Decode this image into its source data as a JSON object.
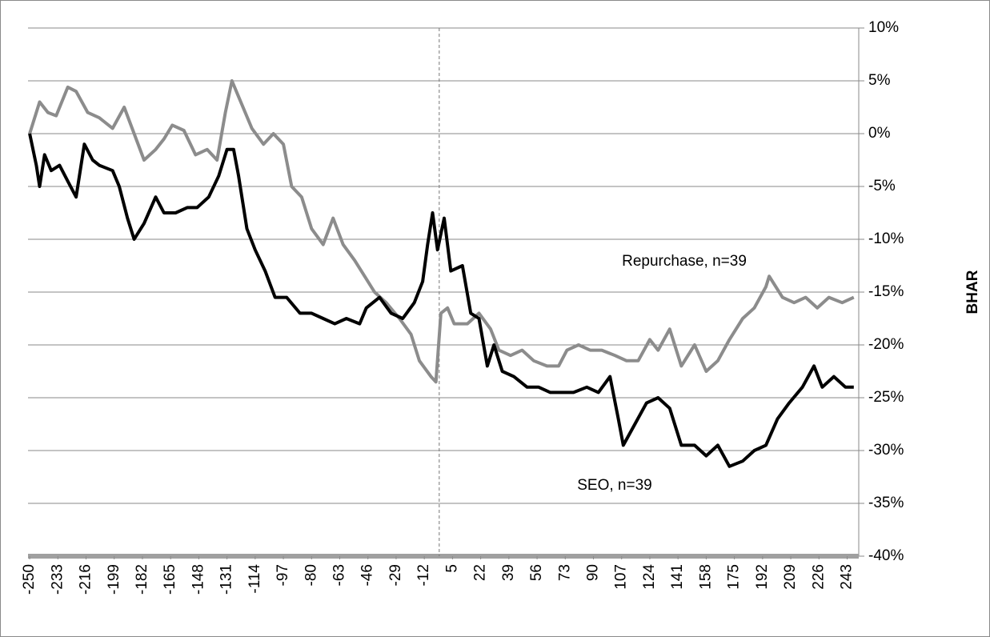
{
  "chart_data": {
    "type": "line",
    "y_label": "BHAR",
    "annotations": [
      "Repurchase, n=39",
      "SEO, n=39"
    ],
    "xlim": [
      -251,
      250
    ],
    "ylim": [
      -40,
      10
    ],
    "ref_x": -3,
    "grid": true,
    "xticks": [
      -250,
      -233,
      -216,
      -199,
      -182,
      -165,
      -148,
      -131,
      -114,
      -97,
      -80,
      -63,
      -46,
      -29,
      -12,
      5,
      22,
      39,
      56,
      73,
      90,
      107,
      124,
      141,
      158,
      175,
      192,
      209,
      226,
      243
    ],
    "yticks": [
      {
        "value": -40,
        "label": "-40%"
      },
      {
        "value": -35,
        "label": "-35%"
      },
      {
        "value": -30,
        "label": "-30%"
      },
      {
        "value": -25,
        "label": "-25%"
      },
      {
        "value": -20,
        "label": "-20%"
      },
      {
        "value": -15,
        "label": "-15%"
      },
      {
        "value": -10,
        "label": "-10%"
      },
      {
        "value": -5,
        "label": "-5%"
      },
      {
        "value": 0,
        "label": "0%"
      },
      {
        "value": 5,
        "label": "5%"
      },
      {
        "value": 10,
        "label": "10%"
      }
    ],
    "series": [
      {
        "name": "Repurchase",
        "color": "#8c8c8c",
        "x": [
          -250,
          -244,
          -239,
          -234,
          -227,
          -222,
          -215,
          -208,
          -200,
          -193,
          -187,
          -181,
          -174,
          -169,
          -164,
          -157,
          -150,
          -143,
          -137,
          -132,
          -128,
          -124,
          -116,
          -109,
          -103,
          -97,
          -92,
          -86,
          -80,
          -73,
          -67,
          -61,
          -54,
          -48,
          -42,
          -35,
          -27,
          -20,
          -15,
          -8,
          -5,
          -2,
          2,
          6,
          14,
          21,
          28,
          33,
          40,
          47,
          54,
          62,
          69,
          74,
          81,
          88,
          95,
          103,
          110,
          117,
          124,
          129,
          136,
          143,
          151,
          158,
          165,
          172,
          180,
          187,
          194,
          196,
          204,
          211,
          218,
          225,
          232,
          240,
          247
        ],
        "values": [
          0,
          3,
          2,
          1.7,
          4.4,
          4,
          2,
          1.5,
          0.5,
          2.5,
          0,
          -2.5,
          -1.5,
          -0.5,
          0.8,
          0.3,
          -2,
          -1.5,
          -2.5,
          2,
          5,
          3.5,
          0.5,
          -1,
          0,
          -1,
          -5,
          -6,
          -9,
          -10.5,
          -8,
          -10.5,
          -12,
          -13.5,
          -15,
          -16,
          -17.5,
          -19,
          -21.5,
          -23,
          -23.5,
          -17,
          -16.5,
          -18,
          -18,
          -17,
          -18.5,
          -20.5,
          -21,
          -20.5,
          -21.5,
          -22,
          -22,
          -20.5,
          -20,
          -20.5,
          -20.5,
          -21,
          -21.5,
          -21.5,
          -19.5,
          -20.5,
          -18.5,
          -22,
          -20,
          -22.5,
          -21.5,
          -19.5,
          -17.5,
          -16.5,
          -14.5,
          -13.5,
          -15.5,
          -16,
          -15.5,
          -16.5,
          -15.5,
          -16,
          -15.5
        ]
      },
      {
        "name": "SEO",
        "color": "#000000",
        "x": [
          -250,
          -246,
          -244,
          -241,
          -237,
          -232,
          -227,
          -222,
          -217,
          -212,
          -208,
          -200,
          -196,
          -191,
          -187,
          -181,
          -174,
          -169,
          -162,
          -155,
          -149,
          -142,
          -136,
          -131,
          -127,
          -124,
          -119,
          -114,
          -108,
          -102,
          -95,
          -87,
          -80,
          -73,
          -66,
          -59,
          -51,
          -47,
          -39,
          -32,
          -25,
          -18,
          -13,
          -10,
          -7,
          -4,
          0,
          4,
          11,
          16,
          21,
          26,
          30,
          35,
          42,
          50,
          57,
          64,
          71,
          78,
          86,
          93,
          100,
          105,
          108,
          115,
          122,
          129,
          136,
          143,
          151,
          158,
          165,
          172,
          180,
          187,
          194,
          201,
          208,
          216,
          223,
          228,
          235,
          242,
          247
        ],
        "values": [
          0,
          -3,
          -5,
          -2,
          -3.5,
          -3,
          -4.5,
          -6,
          -1,
          -2.5,
          -3,
          -3.5,
          -5,
          -8,
          -10,
          -8.5,
          -6,
          -7.5,
          -7.5,
          -7,
          -7,
          -6,
          -4,
          -1.5,
          -1.5,
          -4,
          -9,
          -11,
          -13,
          -15.5,
          -15.5,
          -17,
          -17,
          -17.5,
          -18,
          -17.5,
          -18,
          -16.5,
          -15.5,
          -17,
          -17.5,
          -16,
          -14,
          -10.5,
          -7.5,
          -11,
          -8,
          -13,
          -12.5,
          -17,
          -17.5,
          -22,
          -20,
          -22.5,
          -23,
          -24,
          -24,
          -24.5,
          -24.5,
          -24.5,
          -24,
          -24.5,
          -23,
          -27,
          -29.5,
          -27.5,
          -25.5,
          -25,
          -26,
          -29.5,
          -29.5,
          -30.5,
          -29.5,
          -31.5,
          -31,
          -30,
          -29.5,
          -27,
          -25.5,
          -24,
          -22,
          -24,
          -23,
          -24,
          -24
        ]
      }
    ]
  }
}
